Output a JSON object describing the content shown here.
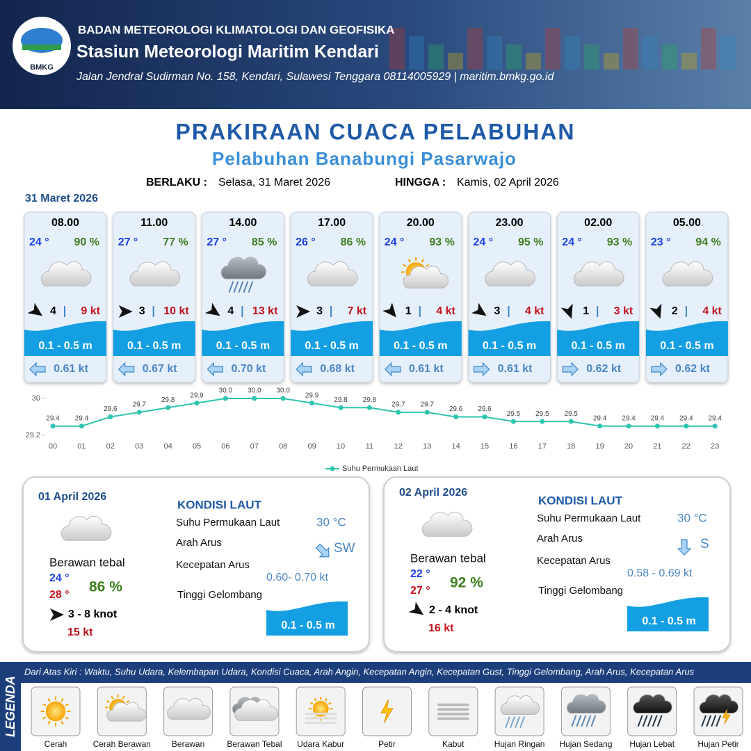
{
  "header": {
    "logo": "BMKG",
    "agency": "BADAN METEOROLOGI KLIMATOLOGI DAN GEOFISIKA",
    "station": "Stasiun Meteorologi Maritim Kendari",
    "address": "Jalan Jendral Sudirman No. 158, Kendari, Sulawesi Tenggara  08114005929 | maritim.bmkg.go.id"
  },
  "title": "PRAKIRAAN CUACA PELABUHAN",
  "subtitle": "Pelabuhan Banabungi Pasarwajo",
  "validity": {
    "from_label": "BERLAKU :",
    "from": "Selasa, 31 Maret 2026",
    "to_label": "HINGGA :",
    "to": "Kamis, 02 April 2026"
  },
  "date_label": "31 Maret 2026",
  "forecasts": [
    {
      "time": "08.00",
      "temp": "24 °",
      "humidity": "90 %",
      "wind": "4",
      "gust": "9 kt",
      "wave": "0.1 - 0.5 m",
      "current": "0.61 kt"
    },
    {
      "time": "11.00",
      "temp": "27 °",
      "humidity": "77 %",
      "wind": "3",
      "gust": "10 kt",
      "wave": "0.1 - 0.5 m",
      "current": "0.67 kt"
    },
    {
      "time": "14.00",
      "temp": "27 °",
      "humidity": "85 %",
      "wind": "4",
      "gust": "13 kt",
      "wave": "0.1 - 0.5 m",
      "current": "0.70 kt"
    },
    {
      "time": "17.00",
      "temp": "26 °",
      "humidity": "86 %",
      "wind": "3",
      "gust": "7 kt",
      "wave": "0.1 - 0.5 m",
      "current": "0.68 kt"
    },
    {
      "time": "20.00",
      "temp": "24 °",
      "humidity": "93 %",
      "wind": "1",
      "gust": "4 kt",
      "wave": "0.1 - 0.5 m",
      "current": "0.61 kt"
    },
    {
      "time": "23.00",
      "temp": "24 °",
      "humidity": "95 %",
      "wind": "3",
      "gust": "4 kt",
      "wave": "0.1 - 0.5 m",
      "current": "0.61 kt"
    },
    {
      "time": "02.00",
      "temp": "24 °",
      "humidity": "93 %",
      "wind": "1",
      "gust": "3 kt",
      "wave": "0.1 - 0.5 m",
      "current": "0.62 kt"
    },
    {
      "time": "05.00",
      "temp": "23 °",
      "humidity": "94 %",
      "wind": "2",
      "gust": "4 kt",
      "wave": "0.1 - 0.5 m",
      "current": "0.62 kt"
    }
  ],
  "chart_data": {
    "type": "line",
    "categories": [
      "00",
      "01",
      "02",
      "03",
      "04",
      "05",
      "06",
      "07",
      "08",
      "09",
      "10",
      "11",
      "12",
      "13",
      "14",
      "15",
      "16",
      "17",
      "18",
      "19",
      "20",
      "21",
      "22",
      "23"
    ],
    "series": [
      {
        "name": "Suhu Permukaan Laut",
        "color": "#2ec4b0",
        "values": [
          29.4,
          29.4,
          29.6,
          29.7,
          29.8,
          29.9,
          30.0,
          30.0,
          30.0,
          29.9,
          29.8,
          29.8,
          29.7,
          29.7,
          29.6,
          29.6,
          29.5,
          29.5,
          29.5,
          29.4,
          29.4,
          29.4,
          29.4,
          29.4
        ],
        "value_labels": [
          "29.4",
          "29.4",
          "29.6",
          "29.7",
          "29.8",
          "29.9",
          "30.0",
          "30.0",
          "30.0",
          "29.9",
          "29.8",
          "29.8",
          "29.7",
          "29.7",
          "29.6",
          "29.6",
          "29.5",
          "29.5",
          "29.5",
          "29.4",
          "29.4",
          "29.4",
          "29.4",
          "29.4"
        ]
      }
    ],
    "ylim": [
      29.2,
      30
    ],
    "yticks": [
      29.2,
      30
    ],
    "legend": "bottom"
  },
  "days": [
    {
      "date": "01 April 2026",
      "condition": "Berawan tebal",
      "temp_min": "24 °",
      "temp_max": "28 °",
      "humidity": "86 %",
      "wind": "3  - 8 knot",
      "gust": "15 kt",
      "section": "KONDISI LAUT",
      "sst_label": "Suhu Permukaan Laut",
      "sst": "30 °C",
      "dir_label": "Arah Arus",
      "dir": "SW",
      "speed_label": "Kecepatan Arus",
      "speed": "0.60- 0.70 kt",
      "wave_label": "Tinggi Gelombang",
      "wave": "0.1 - 0.5 m"
    },
    {
      "date": "02 April 2026",
      "condition": "Berawan tebal",
      "temp_min": "22 °",
      "temp_max": "27 °",
      "humidity": "92 %",
      "wind": "2  - 4 knot",
      "gust": "16 kt",
      "section": "KONDISI LAUT",
      "sst_label": "Suhu Permukaan Laut",
      "sst": "30 °C",
      "dir_label": "Arah Arus",
      "dir": "S",
      "speed_label": "Kecepatan Arus",
      "speed": "0.58 - 0.69 kt",
      "wave_label": "Tinggi Gelombang",
      "wave": "0.1 - 0.5 m"
    }
  ],
  "legend": {
    "title": "LEGENDA",
    "description": "Dari Atas Kiri : Waktu, Suhu Udara, Kelembapan Udara, Kondisi Cuaca, Arah Angin, Kecepatan Angin, Kecepatan Gust, Tinggi Gelombang, Arah Arus, Kecepatan Arus",
    "items": [
      "Cerah",
      "Cerah Berawan",
      "Berawan",
      "Berawan Tebal",
      "Udara Kabur",
      "Petir",
      "Kabut",
      "Hujan Ringan",
      "Hujan Sedang",
      "Hujan Lebat",
      "Hujan Petir"
    ]
  }
}
